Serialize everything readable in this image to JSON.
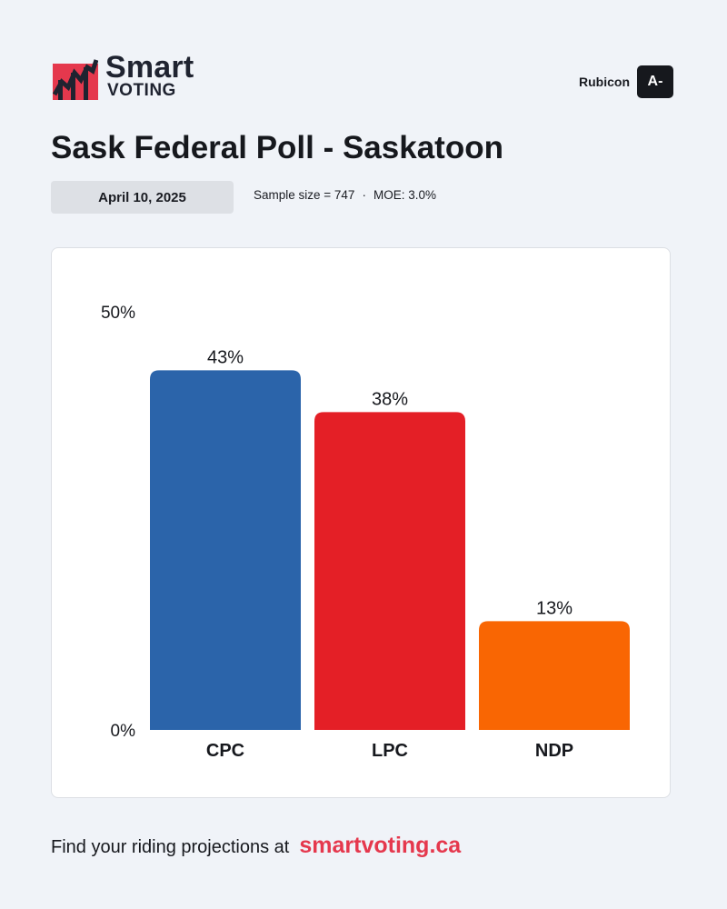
{
  "brand": {
    "line1": "Smart",
    "line2": "VOTING",
    "accent": "#e5384d"
  },
  "pollster": {
    "name": "Rubicon",
    "grade": "A-"
  },
  "title": "Sask Federal Poll - Saskatoon",
  "date": "April 10, 2025",
  "meta": {
    "sample": "Sample size = 747",
    "separator": "·",
    "moe": "MOE: 3.0%"
  },
  "chart_data": {
    "type": "bar",
    "categories": [
      "CPC",
      "LPC",
      "NDP"
    ],
    "values": [
      43,
      38,
      13
    ],
    "value_labels": [
      "43%",
      "38%",
      "13%"
    ],
    "colors": [
      "#2b64aa",
      "#e41f26",
      "#f96603"
    ],
    "ylim": [
      0,
      50
    ],
    "yticks": [
      "0%",
      "50%"
    ],
    "grid": false
  },
  "footer": {
    "text": "Find your riding projections at",
    "link": "smartvoting.ca"
  }
}
